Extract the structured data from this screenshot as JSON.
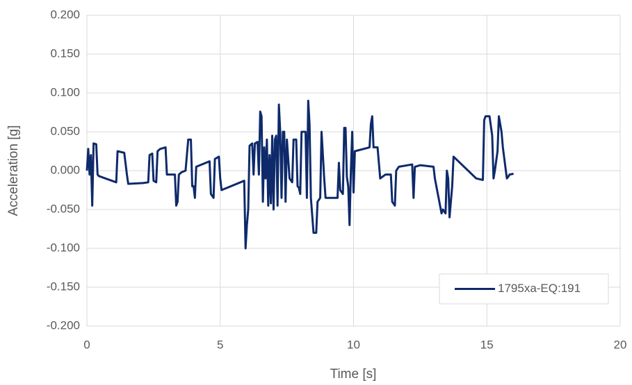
{
  "chart_data": {
    "type": "line",
    "x_label": "Time [s]",
    "y_label": "Acceleration [g]",
    "x": [
      0.0,
      0.05,
      0.1,
      0.15,
      0.2,
      0.25,
      0.35,
      0.4,
      0.45,
      1.1,
      1.15,
      1.4,
      1.5,
      1.55,
      2.1,
      2.3,
      2.35,
      2.45,
      2.5,
      2.6,
      2.65,
      2.75,
      2.95,
      3.0,
      3.3,
      3.35,
      3.4,
      3.45,
      3.55,
      3.7,
      3.8,
      3.9,
      3.95,
      4.0,
      4.05,
      4.1,
      4.6,
      4.65,
      4.75,
      4.8,
      4.95,
      5.0,
      5.05,
      5.9,
      5.95,
      6.0,
      6.05,
      6.1,
      6.2,
      6.25,
      6.3,
      6.4,
      6.45,
      6.5,
      6.55,
      6.6,
      6.65,
      6.7,
      6.75,
      6.8,
      6.85,
      6.9,
      6.95,
      7.0,
      7.05,
      7.1,
      7.15,
      7.2,
      7.25,
      7.3,
      7.35,
      7.4,
      7.45,
      7.5,
      7.6,
      7.7,
      7.75,
      7.85,
      7.9,
      7.95,
      8.0,
      8.05,
      8.2,
      8.25,
      8.3,
      8.35,
      8.4,
      8.5,
      8.6,
      8.65,
      8.75,
      8.8,
      8.9,
      8.95,
      9.4,
      9.45,
      9.5,
      9.6,
      9.65,
      9.7,
      9.75,
      9.8,
      9.85,
      9.9,
      9.95,
      10.0,
      10.05,
      10.6,
      10.65,
      10.7,
      10.75,
      10.9,
      11.0,
      11.2,
      11.4,
      11.45,
      11.55,
      11.6,
      11.7,
      12.2,
      12.25,
      12.3,
      12.5,
      13.0,
      13.05,
      13.3,
      13.35,
      13.45,
      13.5,
      13.55,
      13.6,
      13.7,
      13.75,
      14.6,
      14.85,
      14.9,
      14.95,
      15.1,
      15.2,
      15.25,
      15.3,
      15.4,
      15.45,
      15.55,
      15.6,
      15.75,
      15.8,
      15.85,
      16.0
    ],
    "series": [
      {
        "name": "1795xa-EQ:191",
        "color": "#0e2a6b",
        "values": [
          0.0,
          0.028,
          -0.005,
          0.02,
          -0.045,
          0.035,
          0.034,
          -0.005,
          -0.007,
          -0.015,
          0.025,
          0.023,
          -0.005,
          -0.017,
          -0.016,
          -0.015,
          0.02,
          0.022,
          -0.013,
          -0.015,
          0.025,
          0.028,
          0.03,
          -0.005,
          -0.005,
          -0.045,
          -0.04,
          -0.005,
          -0.002,
          0.0,
          0.04,
          0.04,
          -0.02,
          -0.02,
          -0.035,
          0.005,
          0.012,
          -0.03,
          -0.035,
          0.015,
          0.018,
          -0.01,
          -0.025,
          -0.013,
          -0.1,
          -0.07,
          -0.05,
          0.032,
          0.035,
          -0.005,
          0.035,
          0.037,
          -0.005,
          0.076,
          0.07,
          -0.04,
          0.03,
          -0.01,
          0.04,
          -0.045,
          0.02,
          -0.042,
          0.045,
          -0.05,
          0.04,
          0.045,
          -0.045,
          0.085,
          0.05,
          -0.035,
          0.05,
          0.05,
          -0.04,
          0.04,
          -0.01,
          -0.015,
          0.04,
          0.04,
          -0.02,
          -0.022,
          -0.03,
          0.05,
          0.05,
          -0.035,
          0.09,
          0.06,
          -0.035,
          -0.08,
          -0.08,
          -0.04,
          -0.035,
          0.05,
          -0.01,
          -0.035,
          -0.035,
          0.01,
          -0.025,
          -0.03,
          0.055,
          0.055,
          -0.008,
          -0.02,
          -0.07,
          0.0,
          0.05,
          -0.028,
          0.025,
          0.03,
          0.06,
          0.07,
          0.03,
          0.03,
          -0.01,
          -0.005,
          -0.005,
          -0.04,
          -0.045,
          0.0,
          0.005,
          0.008,
          -0.035,
          0.005,
          0.007,
          0.005,
          -0.01,
          -0.055,
          -0.05,
          -0.055,
          0.0,
          -0.01,
          -0.06,
          -0.02,
          0.018,
          -0.01,
          -0.012,
          0.065,
          0.07,
          0.07,
          0.045,
          -0.01,
          0.0,
          0.025,
          0.07,
          0.05,
          0.03,
          -0.01,
          -0.008,
          -0.005,
          -0.004
        ]
      }
    ],
    "xlim": [
      0,
      20
    ],
    "xticks": [
      0,
      5,
      10,
      15,
      20
    ],
    "ylim": [
      -0.2,
      0.2
    ],
    "yticks": [
      {
        "value": -0.2,
        "label": "-0.200"
      },
      {
        "value": -0.15,
        "label": "-0.150"
      },
      {
        "value": -0.1,
        "label": "-0.100"
      },
      {
        "value": -0.05,
        "label": "-0.050"
      },
      {
        "value": 0,
        "label": "0.000"
      },
      {
        "value": 0.05,
        "label": "0.050"
      },
      {
        "value": 0.1,
        "label": "0.100"
      },
      {
        "value": 0.15,
        "label": "0.150"
      },
      {
        "value": 0.2,
        "label": "0.200"
      }
    ],
    "grid": true,
    "legend": "lower right"
  }
}
